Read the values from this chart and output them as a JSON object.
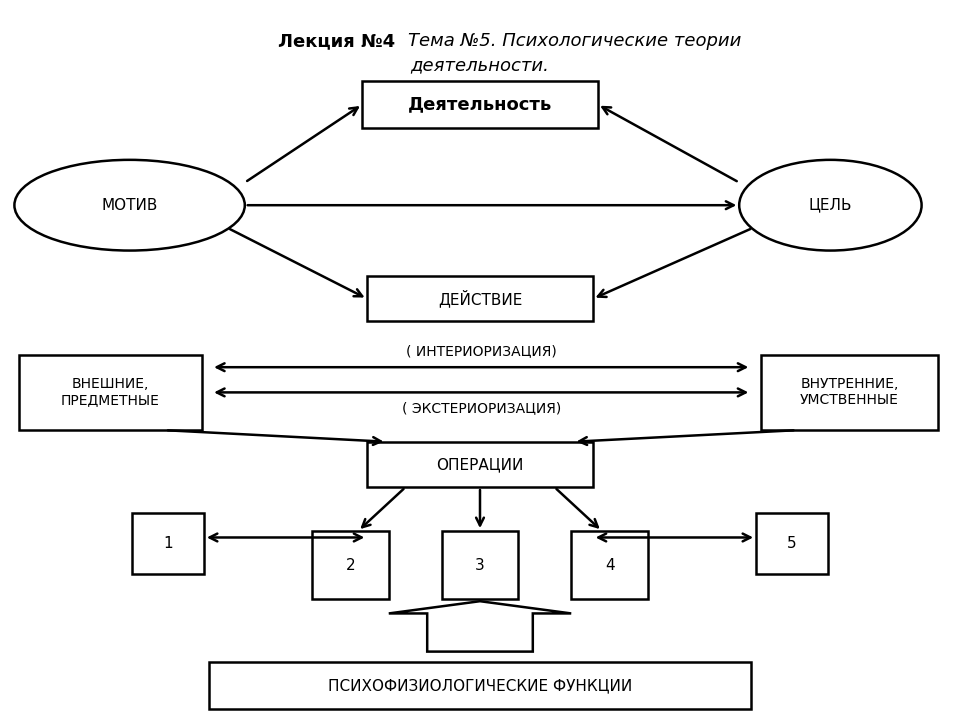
{
  "bg_color": "#ffffff",
  "title_bold": "Лекция №4 ",
  "title_italic": "Тема №5. Психологические теории",
  "title_italic2": "деятельности.",
  "deyat_label": "Деятельность",
  "motiv_label": "МОТИВ",
  "tsel_label": "ЦЕЛЬ",
  "deystvie_label": "ДЕЙСТВИЕ",
  "vneshnie_label": "ВНЕШНИЕ,\nПРЕДМЕТНЫЕ",
  "vnutrennie_label": "ВНУТРЕННИЕ,\nУМСТВЕННЫЕ",
  "inter_label": "( ИНТЕРИОРИЗАЦИЯ)",
  "exter_label": "( ЭКСТЕРИОРИЗАЦИЯ)",
  "operacii_label": "ОПЕРАЦИИ",
  "psiho_label": "ПСИХОФИЗИОЛОГИЧЕСКИЕ ФУНКЦИИ",
  "lw": 1.8
}
